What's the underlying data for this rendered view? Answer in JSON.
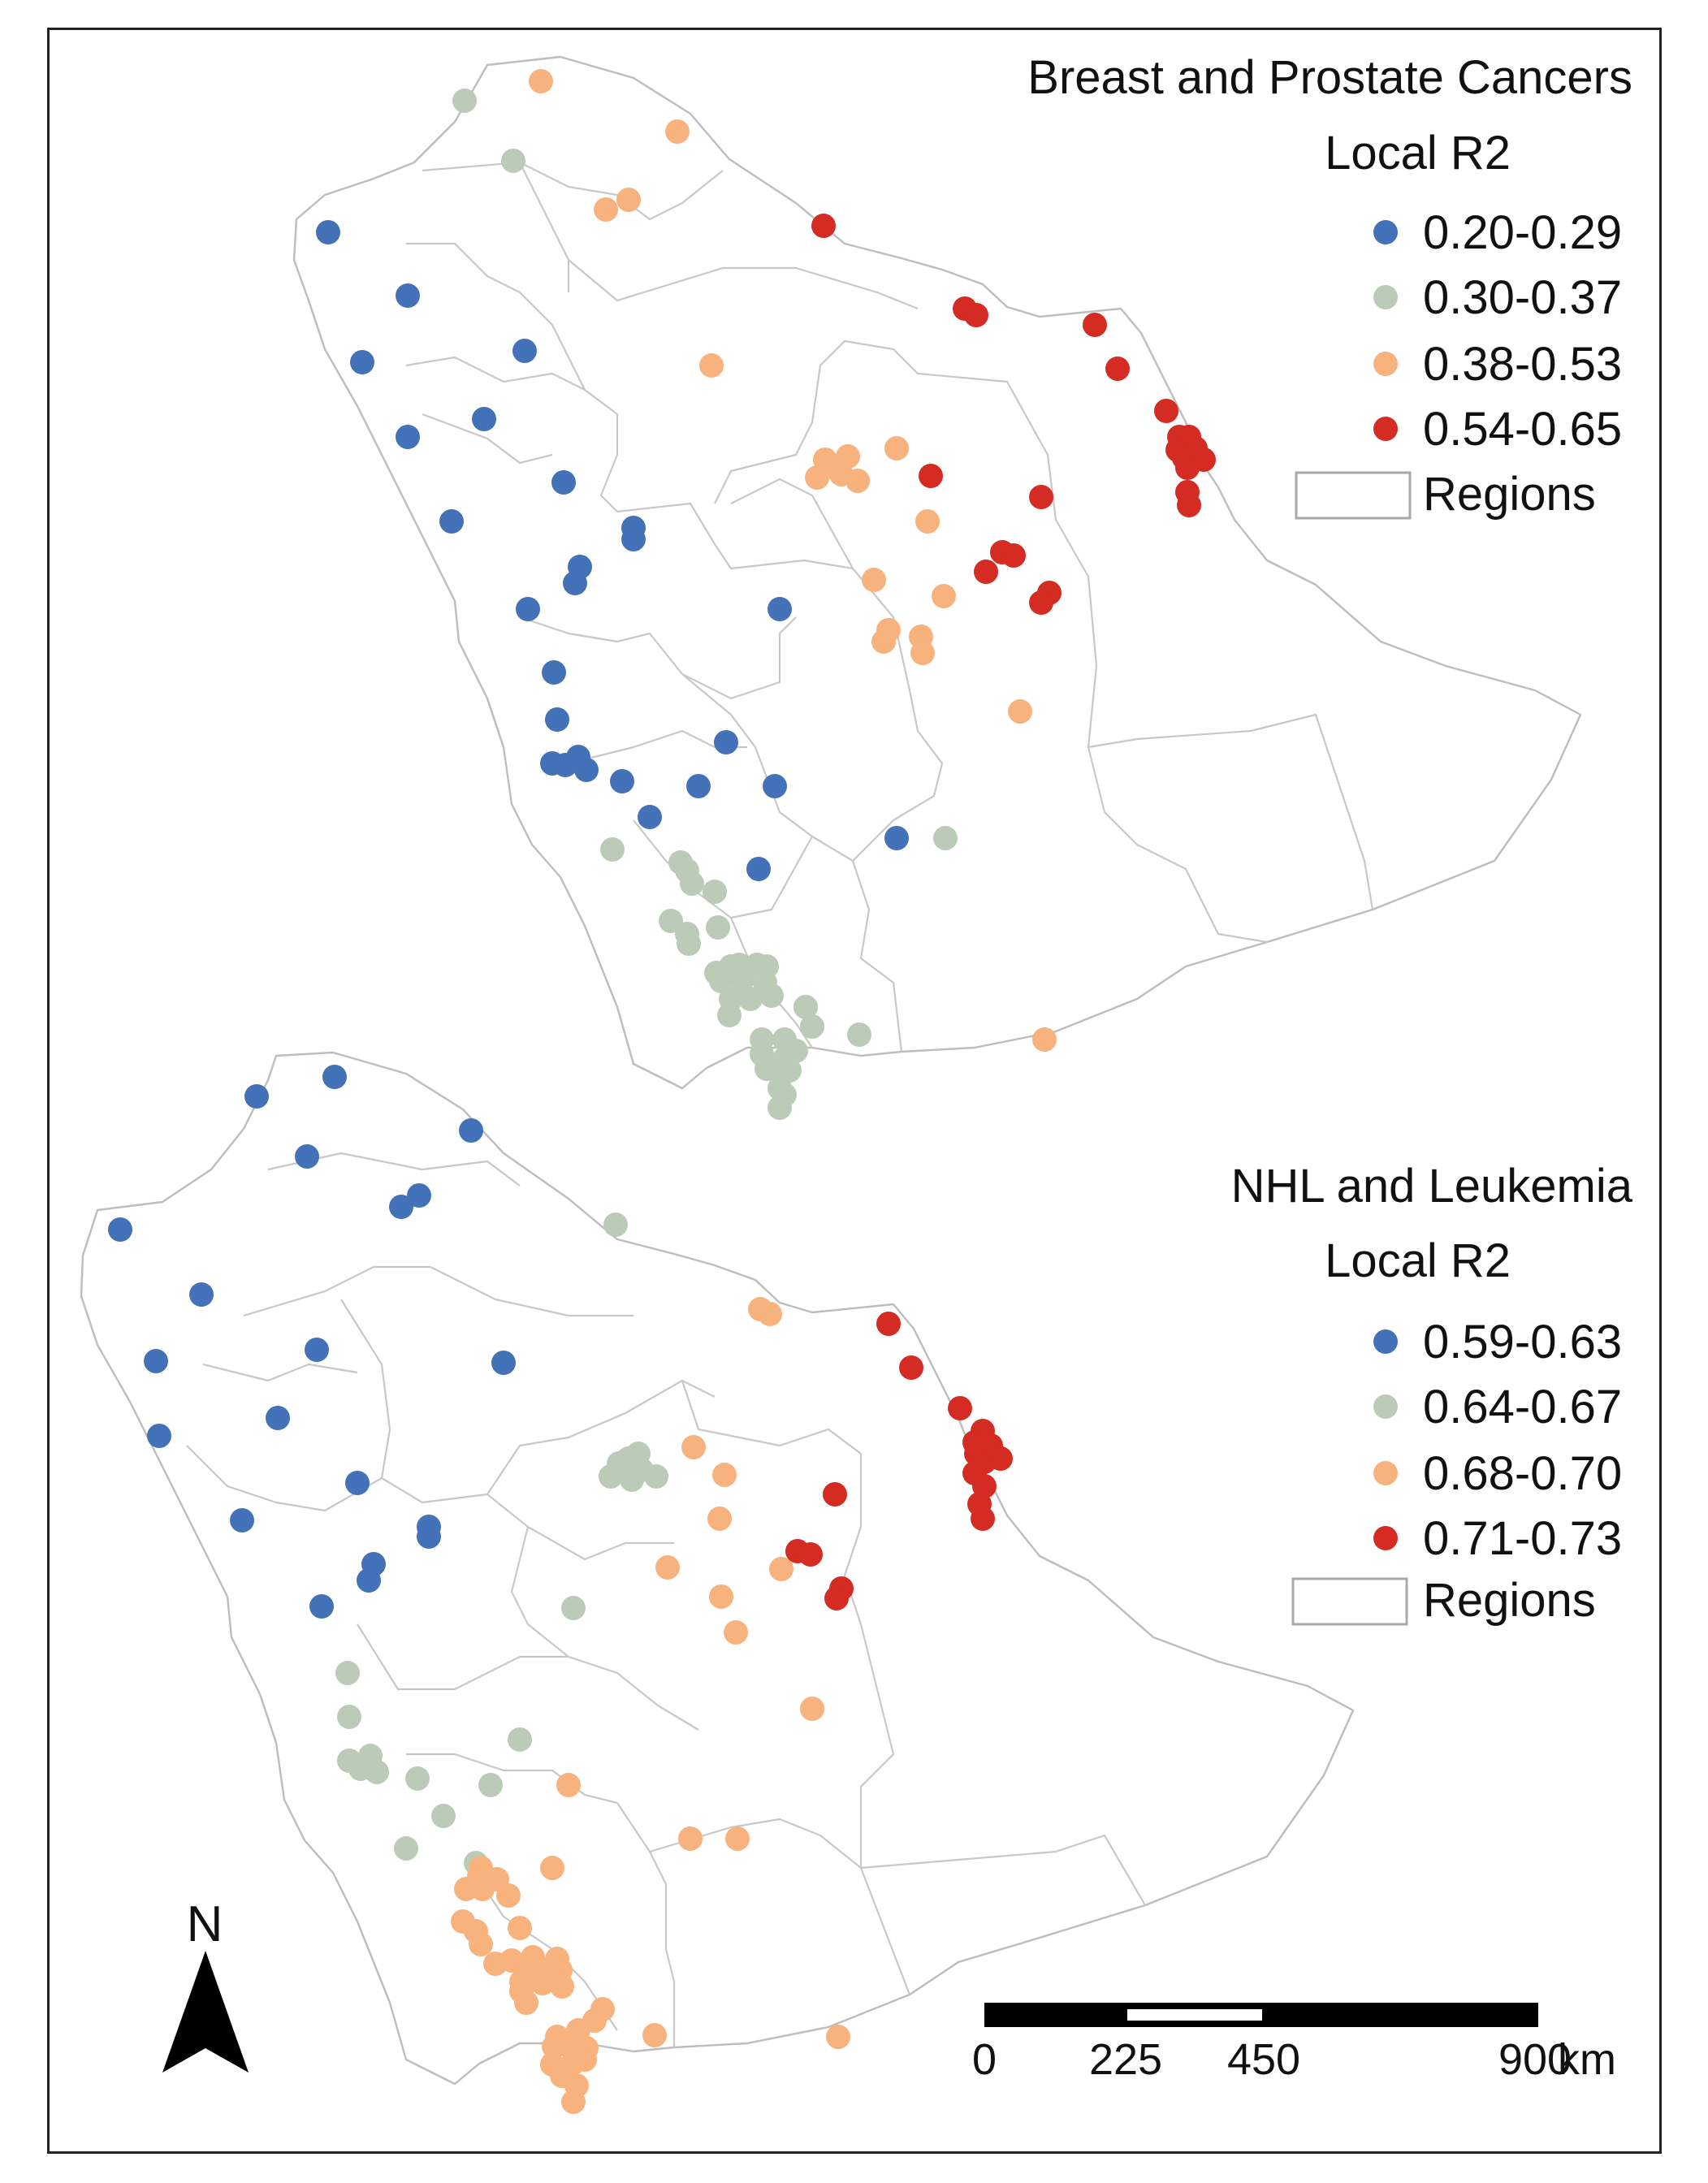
{
  "top_map": {
    "title": "Breast and Prostate Cancers",
    "subtitle": "Local R2",
    "legend": [
      {
        "label": "0.20-0.29",
        "color": "#4472B8"
      },
      {
        "label": "0.30-0.37",
        "color": "#BCCBB7"
      },
      {
        "label": "0.38-0.53",
        "color": "#F7B27E"
      },
      {
        "label": "0.54-0.65",
        "color": "#D42B22"
      }
    ],
    "regions_label": "Regions"
  },
  "bottom_map": {
    "title": "NHL and Leukemia",
    "subtitle": "Local R2",
    "legend": [
      {
        "label": "0.59-0.63",
        "color": "#4472B8"
      },
      {
        "label": "0.64-0.67",
        "color": "#BCCBB7"
      },
      {
        "label": "0.68-0.70",
        "color": "#F7B27E"
      },
      {
        "label": "0.71-0.73",
        "color": "#D42B22"
      }
    ],
    "regions_label": "Regions"
  },
  "north_arrow": {
    "label": "N",
    "icon": "north-arrow-icon"
  },
  "scale_bar": {
    "ticks": [
      "0",
      "225",
      "450",
      "900"
    ],
    "unit": "km"
  }
}
